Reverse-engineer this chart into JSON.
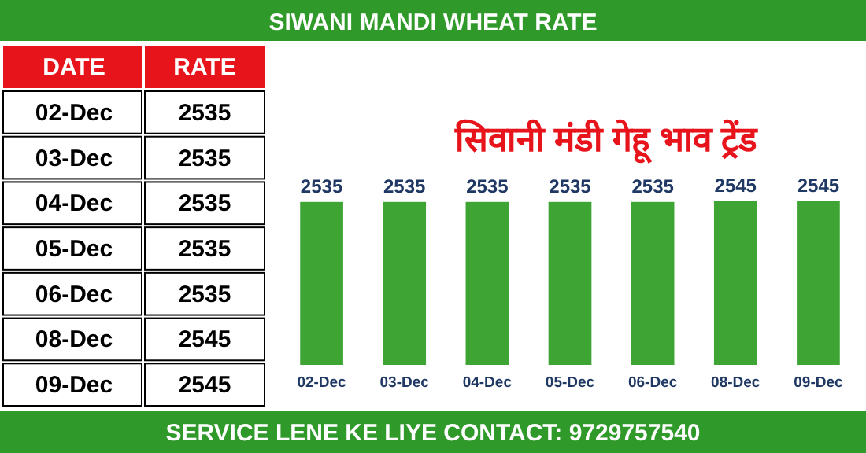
{
  "chart_data": [
    {
      "type": "bar",
      "title": "SIWANI MANDI WHEAT RATE",
      "subtitle": "सिवानी मंडी गेहू भाव ट्रेंड",
      "categories": [
        "02-Dec",
        "03-Dec",
        "04-Dec",
        "05-Dec",
        "06-Dec",
        "08-Dec",
        "09-Dec"
      ],
      "values": [
        2535,
        2535,
        2535,
        2535,
        2535,
        2545,
        2545
      ],
      "color": "#3ea535",
      "data_labels": true,
      "annotations": [
        "SERVICE LENE KE LIYE CONTACT: 9729757540"
      ]
    },
    {
      "type": "other",
      "annotations": [
        "DATE",
        "RATE",
        "02-Dec",
        "2535",
        "03-Dec",
        "2535",
        "04-Dec",
        "2535",
        "05-Dec",
        "2535",
        "06-Dec",
        "2535",
        "08-Dec",
        "2545",
        "09-Dec",
        "2545"
      ]
    }
  ]
}
